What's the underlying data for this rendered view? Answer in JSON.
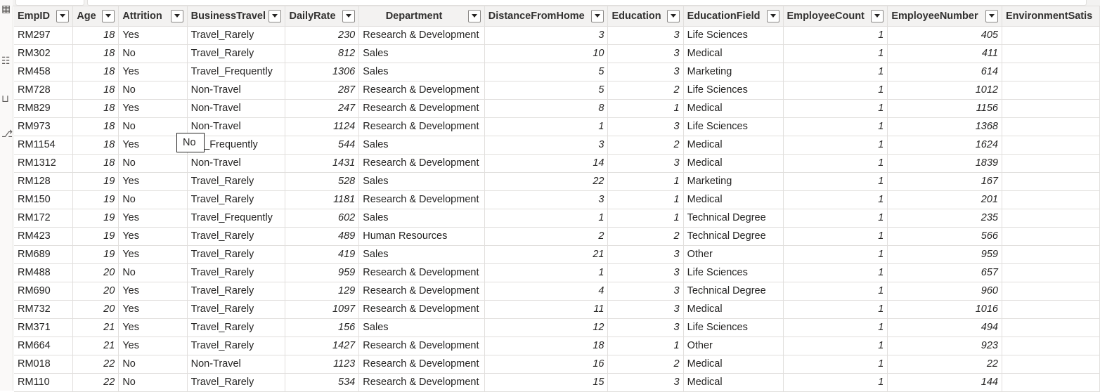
{
  "colors": {
    "header_bg": "#f3f2f1",
    "border": "#e1dfdd",
    "text": "#252423"
  },
  "icons": [
    "table-view-icon",
    "data-view-icon",
    "model-view-icon",
    "dax-query-icon"
  ],
  "columns": [
    "EmpID",
    "Age",
    "Attrition",
    "BusinessTravel",
    "DailyRate",
    "Department",
    "DistanceFromHome",
    "Education",
    "EducationField",
    "EmployeeCount",
    "EmployeeNumber",
    "EnvironmentSatis"
  ],
  "rows": [
    [
      "RM297",
      "18",
      "Yes",
      "Travel_Rarely",
      "230",
      "Research & Development",
      "3",
      "3",
      "Life Sciences",
      "1",
      "405"
    ],
    [
      "RM302",
      "18",
      "No",
      "Travel_Rarely",
      "812",
      "Sales",
      "10",
      "3",
      "Medical",
      "1",
      "411"
    ],
    [
      "RM458",
      "18",
      "Yes",
      "Travel_Frequently",
      "1306",
      "Sales",
      "5",
      "3",
      "Marketing",
      "1",
      "614"
    ],
    [
      "RM728",
      "18",
      "No",
      "Non-Travel",
      "287",
      "Research & Development",
      "5",
      "2",
      "Life Sciences",
      "1",
      "1012"
    ],
    [
      "RM829",
      "18",
      "Yes",
      "Non-Travel",
      "247",
      "Research & Development",
      "8",
      "1",
      "Medical",
      "1",
      "1156"
    ],
    [
      "RM973",
      "18",
      "No",
      "Non-Travel",
      "1124",
      "Research & Development",
      "1",
      "3",
      "Life Sciences",
      "1",
      "1368"
    ],
    [
      "RM1154",
      "18",
      "Yes",
      "vel_Frequently",
      "544",
      "Sales",
      "3",
      "2",
      "Medical",
      "1",
      "1624"
    ],
    [
      "RM1312",
      "18",
      "No",
      "Non-Travel",
      "1431",
      "Research & Development",
      "14",
      "3",
      "Medical",
      "1",
      "1839"
    ],
    [
      "RM128",
      "19",
      "Yes",
      "Travel_Rarely",
      "528",
      "Sales",
      "22",
      "1",
      "Marketing",
      "1",
      "167"
    ],
    [
      "RM150",
      "19",
      "No",
      "Travel_Rarely",
      "1181",
      "Research & Development",
      "3",
      "1",
      "Medical",
      "1",
      "201"
    ],
    [
      "RM172",
      "19",
      "Yes",
      "Travel_Frequently",
      "602",
      "Sales",
      "1",
      "1",
      "Technical Degree",
      "1",
      "235"
    ],
    [
      "RM423",
      "19",
      "Yes",
      "Travel_Rarely",
      "489",
      "Human Resources",
      "2",
      "2",
      "Technical Degree",
      "1",
      "566"
    ],
    [
      "RM689",
      "19",
      "Yes",
      "Travel_Rarely",
      "419",
      "Sales",
      "21",
      "3",
      "Other",
      "1",
      "959"
    ],
    [
      "RM488",
      "20",
      "No",
      "Travel_Rarely",
      "959",
      "Research & Development",
      "1",
      "3",
      "Life Sciences",
      "1",
      "657"
    ],
    [
      "RM690",
      "20",
      "Yes",
      "Travel_Rarely",
      "129",
      "Research & Development",
      "4",
      "3",
      "Technical Degree",
      "1",
      "960"
    ],
    [
      "RM732",
      "20",
      "Yes",
      "Travel_Rarely",
      "1097",
      "Research & Development",
      "11",
      "3",
      "Medical",
      "1",
      "1016"
    ],
    [
      "RM371",
      "21",
      "Yes",
      "Travel_Rarely",
      "156",
      "Sales",
      "12",
      "3",
      "Life Sciences",
      "1",
      "494"
    ],
    [
      "RM664",
      "21",
      "Yes",
      "Travel_Rarely",
      "1427",
      "Research & Development",
      "18",
      "1",
      "Other",
      "1",
      "923"
    ],
    [
      "RM018",
      "22",
      "No",
      "Non-Travel",
      "1123",
      "Research & Development",
      "16",
      "2",
      "Medical",
      "1",
      "22"
    ],
    [
      "RM110",
      "22",
      "No",
      "Travel_Rarely",
      "534",
      "Research & Development",
      "15",
      "3",
      "Medical",
      "1",
      "144"
    ]
  ],
  "tooltip": {
    "text": "No"
  }
}
